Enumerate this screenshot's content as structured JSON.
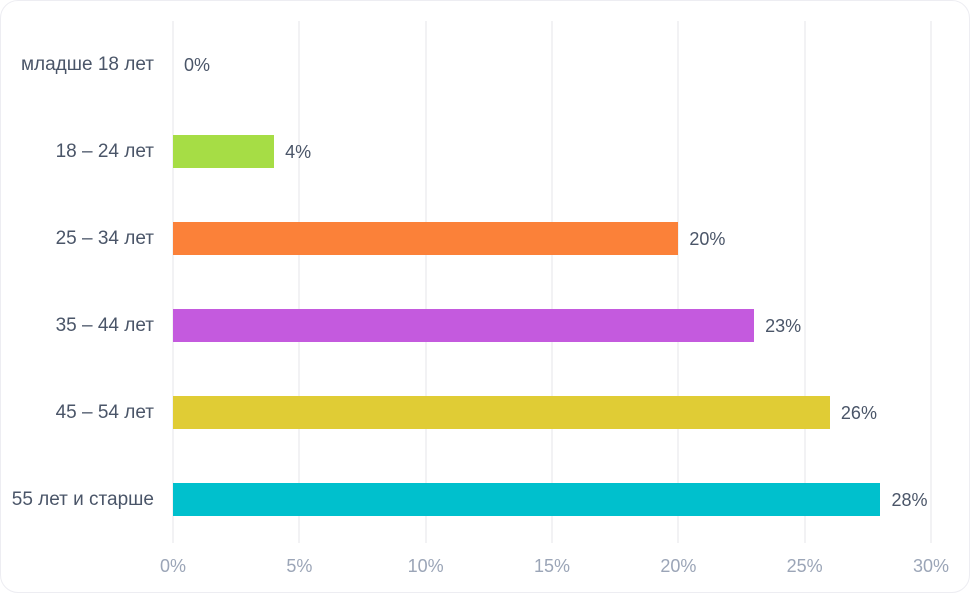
{
  "chart_data": {
    "type": "bar",
    "orientation": "horizontal",
    "title": "",
    "xlabel": "",
    "ylabel": "",
    "categories": [
      "младше 18 лет",
      "18 – 24 лет",
      "25 – 34 лет",
      "35 – 44 лет",
      "45 – 54 лет",
      "55 лет и старше"
    ],
    "values": [
      0,
      4,
      20,
      23,
      26,
      28
    ],
    "value_labels": [
      "0%",
      "4%",
      "20%",
      "23%",
      "26%",
      "28%"
    ],
    "bar_colors": [
      null,
      "#a6dd45",
      "#fb8139",
      "#c45ade",
      "#e0cc35",
      "#00c0cd"
    ],
    "xticks": [
      "0%",
      "5%",
      "10%",
      "15%",
      "20%",
      "25%",
      "30%"
    ],
    "xtick_values": [
      0,
      5,
      10,
      15,
      20,
      25,
      30
    ],
    "xlim": [
      0,
      30
    ],
    "grid": "vertical-only",
    "legend": "none"
  },
  "colors": {
    "category_label": "#4a5568",
    "value_label": "#4a5568",
    "tick_label": "#9ba5b7",
    "gridline": "#e4e4e9",
    "card_background": "#ffffff",
    "card_border": "#ededf2"
  }
}
